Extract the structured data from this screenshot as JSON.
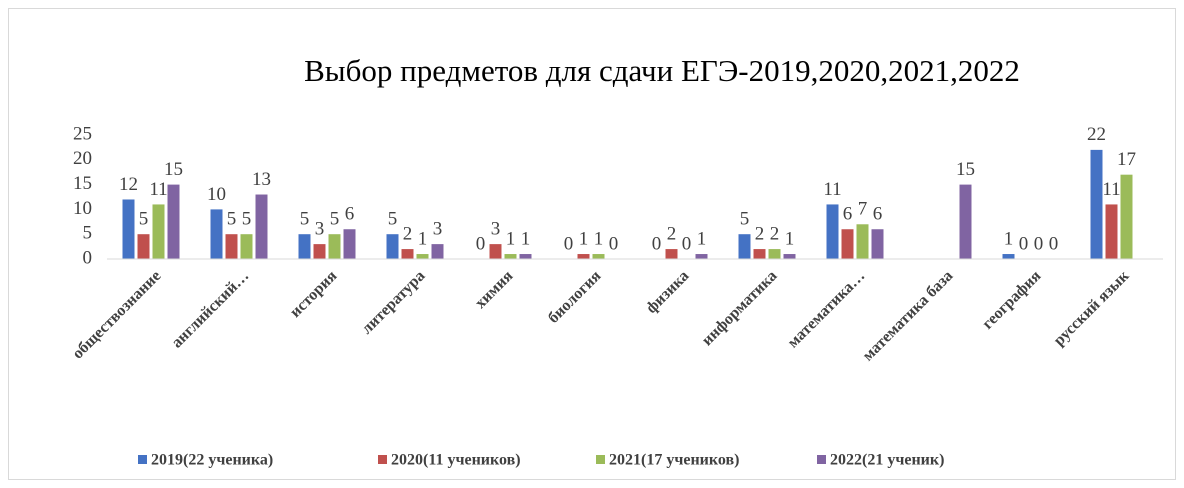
{
  "chart_data": {
    "type": "bar",
    "title": "Выбор предметов для сдачи ЕГЭ-2019,2020,2021,2022",
    "categories": [
      "обществознание",
      "английский…",
      "история",
      "литература",
      "химия",
      "биология",
      "физика",
      "информатика",
      "математика…",
      "математика база",
      "география",
      "русский язык"
    ],
    "series": [
      {
        "name": "2019(22 ученика)",
        "color": "#4472c4",
        "values": [
          12,
          10,
          5,
          5,
          0,
          0,
          0,
          5,
          11,
          null,
          1,
          22
        ]
      },
      {
        "name": "2020(11 учеников)",
        "color": "#c0504d",
        "values": [
          5,
          5,
          3,
          2,
          3,
          1,
          2,
          2,
          6,
          null,
          0,
          11
        ]
      },
      {
        "name": "2021(17 учеников)",
        "color": "#9bbb59",
        "values": [
          11,
          5,
          5,
          1,
          1,
          1,
          0,
          2,
          7,
          null,
          0,
          17
        ]
      },
      {
        "name": "2022(21 ученик)",
        "color": "#8064a2",
        "values": [
          15,
          13,
          6,
          3,
          1,
          0,
          1,
          1,
          6,
          15,
          0,
          null
        ]
      }
    ],
    "ylim": [
      0,
      25
    ],
    "yticks": [
      0,
      5,
      10,
      15,
      20,
      25
    ],
    "grid": false,
    "legend": "bottom"
  }
}
